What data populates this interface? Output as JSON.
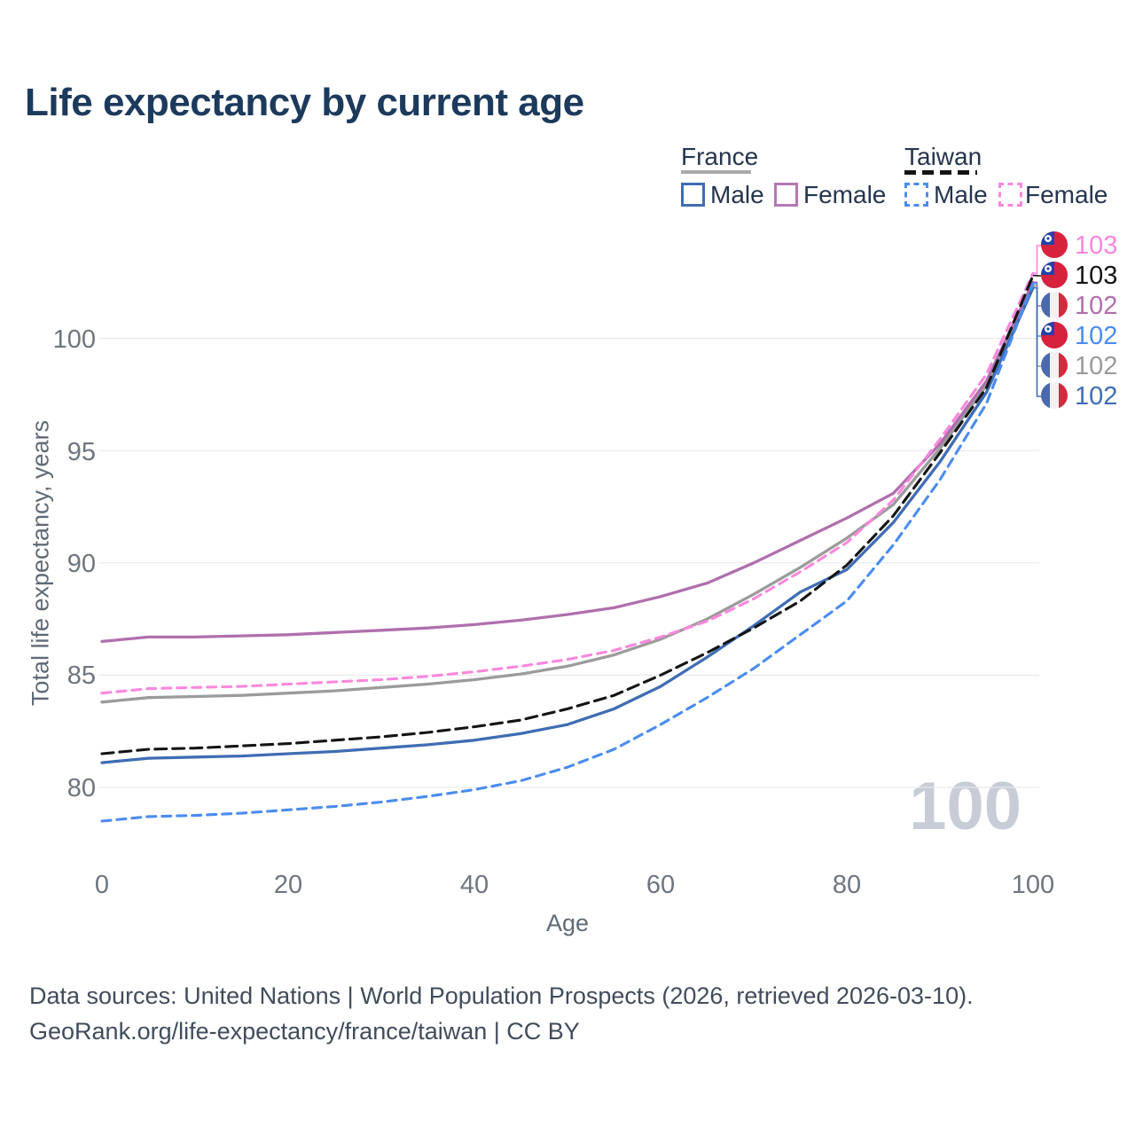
{
  "title": "Life expectancy by current age",
  "legend": {
    "groups": [
      {
        "name": "France",
        "line_style": "solid",
        "underline_color": "#a9a9a9",
        "items": [
          {
            "label": "Male",
            "color": "#3f6db4"
          },
          {
            "label": "Female",
            "color": "#b678b4"
          }
        ]
      },
      {
        "name": "Taiwan",
        "line_style": "dashed",
        "underline_color": "#141414",
        "items": [
          {
            "label": "Male",
            "color": "#4a8cf0"
          },
          {
            "label": "Female",
            "color": "#fb87dd"
          }
        ]
      }
    ]
  },
  "axes": {
    "y": {
      "label": "Total life expectancy, years",
      "ticks": [
        100,
        95,
        90,
        85,
        80
      ]
    },
    "x": {
      "label": "Age",
      "ticks": [
        0,
        20,
        40,
        60,
        80,
        100
      ]
    }
  },
  "watermark": "100",
  "end_labels": [
    {
      "value": "103",
      "flag": "taiwan",
      "color": "#fb87dd",
      "series": "taiwan-female"
    },
    {
      "value": "103",
      "flag": "taiwan",
      "color": "#141414",
      "series": "taiwan-total"
    },
    {
      "value": "102",
      "flag": "france",
      "color": "#b06fad",
      "series": "france-female"
    },
    {
      "value": "102",
      "flag": "taiwan",
      "color": "#4a8cf0",
      "series": "taiwan-male"
    },
    {
      "value": "102",
      "flag": "france",
      "color": "#9b9b9b",
      "series": "france-total"
    },
    {
      "value": "102",
      "flag": "france",
      "color": "#3f6db4",
      "series": "france-male"
    }
  ],
  "footer": {
    "line1": "Data sources: United Nations | World Population Prospects (2026, retrieved 2026-03-10).",
    "line2": "GeoRank.org/life-expectancy/france/taiwan | CC BY"
  },
  "chart_data": {
    "type": "line",
    "title": "Life expectancy by current age",
    "xlabel": "Age",
    "ylabel": "Total life expectancy, years",
    "xlim": [
      0,
      100
    ],
    "ylim": [
      77,
      104
    ],
    "grid": "horizontal",
    "legend_position": "top-right",
    "x": [
      0,
      5,
      10,
      15,
      20,
      25,
      30,
      35,
      40,
      45,
      50,
      55,
      60,
      65,
      70,
      75,
      80,
      85,
      90,
      95,
      100
    ],
    "series": [
      {
        "name": "france-total",
        "country": "France",
        "sex": "Total",
        "line_style": "solid",
        "color": "#9b9b9b",
        "values": [
          83.8,
          84.0,
          84.05,
          84.1,
          84.2,
          84.3,
          84.45,
          84.6,
          84.8,
          85.05,
          85.4,
          85.9,
          86.6,
          87.5,
          88.6,
          89.8,
          91.1,
          92.6,
          95.1,
          97.9,
          102.35
        ]
      },
      {
        "name": "france-female",
        "country": "France",
        "sex": "Female",
        "line_style": "solid",
        "color": "#b06fad",
        "values": [
          86.5,
          86.7,
          86.7,
          86.75,
          86.8,
          86.9,
          87.0,
          87.1,
          87.25,
          87.45,
          87.7,
          88.0,
          88.5,
          89.1,
          90.0,
          91.0,
          92.0,
          93.1,
          95.3,
          98.1,
          102.5
        ]
      },
      {
        "name": "taiwan-female",
        "country": "Taiwan",
        "sex": "Female",
        "line_style": "dashed",
        "color": "#fb87dd",
        "values": [
          84.2,
          84.4,
          84.45,
          84.5,
          84.6,
          84.7,
          84.8,
          84.95,
          85.15,
          85.4,
          85.7,
          86.1,
          86.7,
          87.4,
          88.4,
          89.6,
          90.9,
          92.8,
          95.5,
          98.4,
          102.9
        ]
      },
      {
        "name": "france-male",
        "country": "France",
        "sex": "Male",
        "line_style": "solid",
        "color": "#3f6db4",
        "values": [
          81.1,
          81.3,
          81.35,
          81.4,
          81.5,
          81.6,
          81.75,
          81.9,
          82.1,
          82.4,
          82.8,
          83.5,
          84.5,
          85.8,
          87.2,
          88.7,
          89.7,
          91.8,
          94.5,
          97.6,
          102.25
        ]
      },
      {
        "name": "taiwan-total",
        "country": "Taiwan",
        "sex": "Total",
        "line_style": "dashed",
        "color": "#141414",
        "values": [
          81.5,
          81.7,
          81.75,
          81.85,
          81.95,
          82.1,
          82.25,
          82.45,
          82.7,
          83.0,
          83.5,
          84.1,
          85.0,
          86.0,
          87.1,
          88.3,
          89.9,
          92.1,
          94.9,
          97.8,
          102.8
        ]
      },
      {
        "name": "taiwan-male",
        "country": "Taiwan",
        "sex": "Male",
        "line_style": "dashed",
        "color": "#4a8cf0",
        "values": [
          78.5,
          78.7,
          78.75,
          78.85,
          79.0,
          79.15,
          79.35,
          79.6,
          79.9,
          80.3,
          80.9,
          81.7,
          82.8,
          84.0,
          85.3,
          86.8,
          88.3,
          90.8,
          93.7,
          97.1,
          102.45
        ]
      }
    ]
  }
}
